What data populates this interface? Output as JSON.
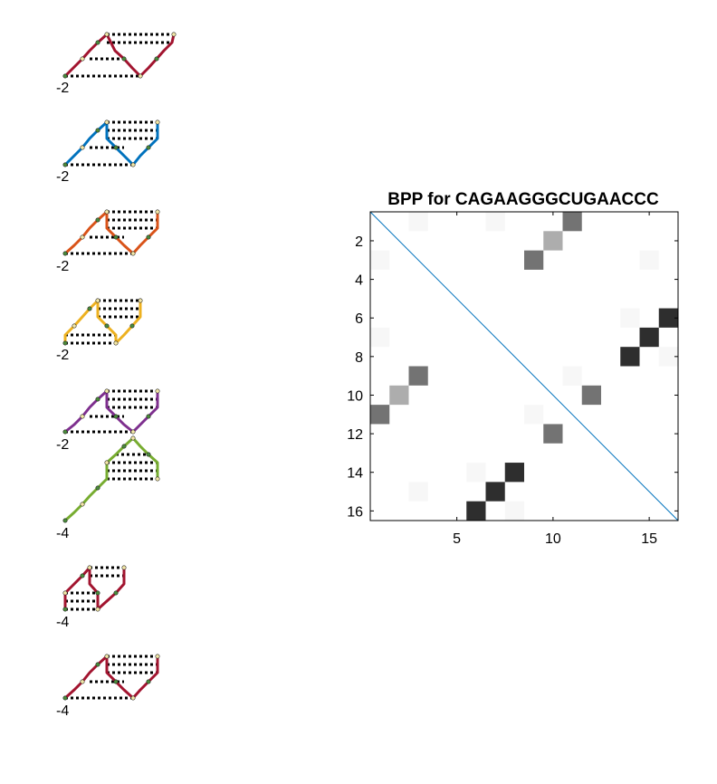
{
  "structures": [
    {
      "label": "-2",
      "color": "#A2142F"
    },
    {
      "label": "-2",
      "color": "#0072BD"
    },
    {
      "label": "-2",
      "color": "#D95319"
    },
    {
      "label": "-2",
      "color": "#EDB120"
    },
    {
      "label": "-2",
      "color": "#7E2F8E"
    },
    {
      "label": "-4",
      "color": "#77AC30"
    },
    {
      "label": "-4",
      "color": "#A2142F"
    },
    {
      "label": "-4",
      "color": "#A2142F"
    }
  ],
  "chart_data": {
    "type": "heatmap",
    "title": "BPP for CAGAAGGGCUGAACCC",
    "n": 16,
    "xticks": [
      5,
      10,
      15
    ],
    "yticks": [
      2,
      4,
      6,
      8,
      10,
      12,
      14,
      16
    ],
    "diagonal_color": "#0072BD",
    "cells": [
      {
        "i": 1,
        "j": 3,
        "p": 0.03
      },
      {
        "i": 1,
        "j": 7,
        "p": 0.03
      },
      {
        "i": 1,
        "j": 11,
        "p": 0.55
      },
      {
        "i": 2,
        "j": 10,
        "p": 0.32
      },
      {
        "i": 3,
        "j": 1,
        "p": 0.03
      },
      {
        "i": 3,
        "j": 9,
        "p": 0.55
      },
      {
        "i": 3,
        "j": 15,
        "p": 0.03
      },
      {
        "i": 6,
        "j": 14,
        "p": 0.03
      },
      {
        "i": 6,
        "j": 16,
        "p": 0.82
      },
      {
        "i": 7,
        "j": 1,
        "p": 0.03
      },
      {
        "i": 7,
        "j": 15,
        "p": 0.82
      },
      {
        "i": 8,
        "j": 14,
        "p": 0.82
      },
      {
        "i": 8,
        "j": 16,
        "p": 0.03
      },
      {
        "i": 9,
        "j": 3,
        "p": 0.55
      },
      {
        "i": 9,
        "j": 11,
        "p": 0.03
      },
      {
        "i": 10,
        "j": 2,
        "p": 0.32
      },
      {
        "i": 10,
        "j": 12,
        "p": 0.55
      },
      {
        "i": 11,
        "j": 1,
        "p": 0.55
      },
      {
        "i": 11,
        "j": 9,
        "p": 0.03
      },
      {
        "i": 12,
        "j": 10,
        "p": 0.55
      },
      {
        "i": 14,
        "j": 6,
        "p": 0.03
      },
      {
        "i": 14,
        "j": 8,
        "p": 0.82
      },
      {
        "i": 15,
        "j": 3,
        "p": 0.03
      },
      {
        "i": 15,
        "j": 7,
        "p": 0.82
      },
      {
        "i": 16,
        "j": 6,
        "p": 0.82
      },
      {
        "i": 16,
        "j": 8,
        "p": 0.03
      }
    ]
  }
}
